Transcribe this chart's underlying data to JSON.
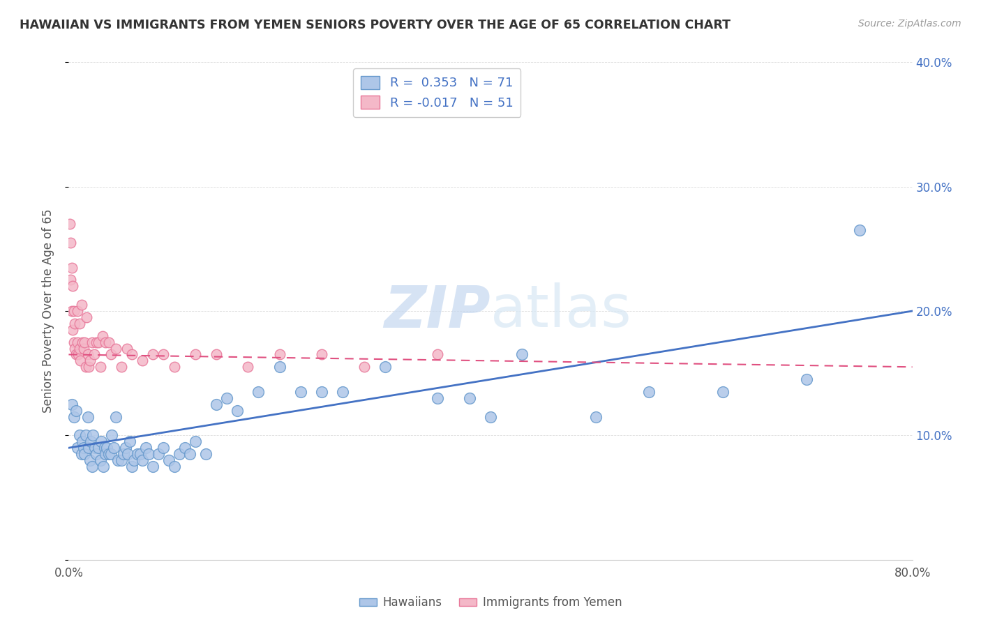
{
  "title": "HAWAIIAN VS IMMIGRANTS FROM YEMEN SENIORS POVERTY OVER THE AGE OF 65 CORRELATION CHART",
  "source": "Source: ZipAtlas.com",
  "ylabel": "Seniors Poverty Over the Age of 65",
  "xlim": [
    0,
    0.8
  ],
  "ylim": [
    0,
    0.4
  ],
  "xtick_positions": [
    0.0,
    0.1,
    0.2,
    0.3,
    0.4,
    0.5,
    0.6,
    0.7,
    0.8
  ],
  "xticklabels": [
    "0.0%",
    "",
    "",
    "",
    "",
    "",
    "",
    "",
    "80.0%"
  ],
  "ytick_positions": [
    0.0,
    0.1,
    0.2,
    0.3,
    0.4
  ],
  "yticklabels_right": [
    "",
    "10.0%",
    "20.0%",
    "30.0%",
    "40.0%"
  ],
  "legend_label1": "Hawaiians",
  "legend_label2": "Immigrants from Yemen",
  "r1": 0.353,
  "n1": 71,
  "r2": -0.017,
  "n2": 51,
  "hawaii_color": "#aec6e8",
  "hawaii_edge": "#6699cc",
  "yemen_color": "#f4b8c8",
  "yemen_edge": "#e8789a",
  "line1_color": "#4472c4",
  "line2_color": "#e05080",
  "background_color": "#ffffff",
  "hawaiians_x": [
    0.003,
    0.005,
    0.007,
    0.008,
    0.01,
    0.012,
    0.013,
    0.014,
    0.015,
    0.016,
    0.018,
    0.019,
    0.02,
    0.021,
    0.022,
    0.023,
    0.025,
    0.026,
    0.028,
    0.03,
    0.031,
    0.033,
    0.034,
    0.035,
    0.036,
    0.038,
    0.04,
    0.041,
    0.043,
    0.045,
    0.047,
    0.05,
    0.052,
    0.054,
    0.056,
    0.058,
    0.06,
    0.062,
    0.065,
    0.068,
    0.07,
    0.073,
    0.076,
    0.08,
    0.085,
    0.09,
    0.095,
    0.1,
    0.105,
    0.11,
    0.115,
    0.12,
    0.13,
    0.14,
    0.15,
    0.16,
    0.18,
    0.2,
    0.22,
    0.24,
    0.26,
    0.3,
    0.35,
    0.38,
    0.4,
    0.43,
    0.5,
    0.55,
    0.62,
    0.7,
    0.75
  ],
  "hawaiians_y": [
    0.125,
    0.115,
    0.12,
    0.09,
    0.1,
    0.085,
    0.095,
    0.09,
    0.085,
    0.1,
    0.115,
    0.09,
    0.08,
    0.095,
    0.075,
    0.1,
    0.09,
    0.085,
    0.09,
    0.08,
    0.095,
    0.075,
    0.09,
    0.085,
    0.09,
    0.085,
    0.085,
    0.1,
    0.09,
    0.115,
    0.08,
    0.08,
    0.085,
    0.09,
    0.085,
    0.095,
    0.075,
    0.08,
    0.085,
    0.085,
    0.08,
    0.09,
    0.085,
    0.075,
    0.085,
    0.09,
    0.08,
    0.075,
    0.085,
    0.09,
    0.085,
    0.095,
    0.085,
    0.125,
    0.13,
    0.12,
    0.135,
    0.155,
    0.135,
    0.135,
    0.135,
    0.155,
    0.13,
    0.13,
    0.115,
    0.165,
    0.115,
    0.135,
    0.135,
    0.145,
    0.265
  ],
  "yemen_x": [
    0.001,
    0.002,
    0.002,
    0.003,
    0.003,
    0.004,
    0.004,
    0.005,
    0.005,
    0.006,
    0.006,
    0.007,
    0.008,
    0.008,
    0.009,
    0.01,
    0.01,
    0.011,
    0.012,
    0.013,
    0.014,
    0.015,
    0.016,
    0.017,
    0.018,
    0.019,
    0.02,
    0.022,
    0.024,
    0.026,
    0.028,
    0.03,
    0.032,
    0.035,
    0.038,
    0.04,
    0.045,
    0.05,
    0.055,
    0.06,
    0.07,
    0.08,
    0.09,
    0.1,
    0.12,
    0.14,
    0.17,
    0.2,
    0.24,
    0.28,
    0.35
  ],
  "yemen_y": [
    0.27,
    0.225,
    0.255,
    0.2,
    0.235,
    0.185,
    0.22,
    0.175,
    0.2,
    0.17,
    0.19,
    0.165,
    0.175,
    0.2,
    0.165,
    0.17,
    0.19,
    0.16,
    0.205,
    0.175,
    0.17,
    0.175,
    0.155,
    0.195,
    0.165,
    0.155,
    0.16,
    0.175,
    0.165,
    0.175,
    0.175,
    0.155,
    0.18,
    0.175,
    0.175,
    0.165,
    0.17,
    0.155,
    0.17,
    0.165,
    0.16,
    0.165,
    0.165,
    0.155,
    0.165,
    0.165,
    0.155,
    0.165,
    0.165,
    0.155,
    0.165
  ]
}
